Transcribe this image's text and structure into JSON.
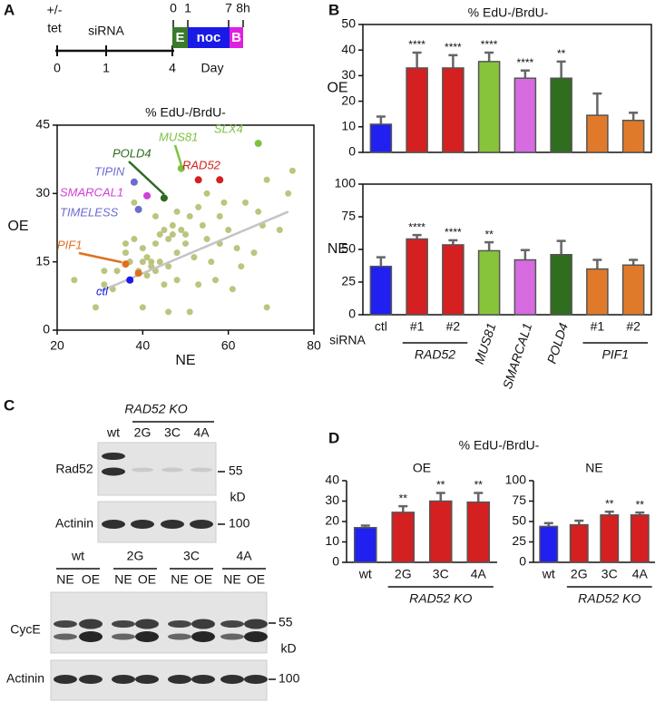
{
  "panels": [
    "A",
    "B",
    "C",
    "D"
  ],
  "timeline": {
    "treatment": [
      "+/-",
      "tet"
    ],
    "sirna": "siRNA",
    "days": [
      "0",
      "1",
      "4"
    ],
    "unit": "Day",
    "hours": [
      "0",
      "1",
      "7",
      "8h"
    ],
    "phases": [
      {
        "label": "E",
        "color": "#3a7a2a"
      },
      {
        "label": "noc",
        "color": "#1a1ae6"
      },
      {
        "label": "B",
        "color": "#e020e0"
      }
    ]
  },
  "chart_data": [
    {
      "type": "scatter",
      "title": "% EdU-/BrdU-",
      "xlabel": "NE",
      "ylabel": "OE",
      "xlim": [
        20,
        80
      ],
      "xticks": [
        20,
        40,
        60,
        80
      ],
      "ylim": [
        0,
        45
      ],
      "yticks": [
        0,
        15,
        30,
        45
      ],
      "background": {
        "color": "#bcc47e",
        "x": [
          24,
          29,
          31,
          31,
          33,
          34,
          36,
          36,
          37,
          38,
          39,
          40,
          40,
          41,
          41,
          42,
          42,
          43,
          43,
          43,
          44,
          44,
          45,
          45,
          46,
          46,
          47,
          47,
          48,
          48,
          49,
          50,
          50,
          51,
          52,
          53,
          53,
          54,
          55,
          56,
          57,
          58,
          59,
          60,
          61,
          62,
          63,
          64,
          66,
          67,
          68,
          69,
          69,
          72,
          74,
          75,
          46,
          40,
          38,
          48,
          55,
          58,
          51
        ],
        "y": [
          11,
          5,
          10,
          13,
          9,
          13,
          19,
          17,
          15,
          20,
          13,
          15,
          18,
          12,
          16,
          14,
          15,
          13,
          19,
          25,
          21,
          15,
          22,
          10,
          20,
          14,
          21,
          23,
          17,
          26,
          22,
          19,
          21,
          25,
          16,
          27,
          10,
          23,
          20,
          15,
          11,
          25,
          28,
          22,
          9,
          18,
          14,
          28,
          17,
          26,
          23,
          5,
          33,
          22,
          30,
          35,
          4,
          5,
          28,
          11,
          30,
          19,
          4
        ]
      },
      "trend": {
        "color": "#c4c4c4",
        "x": [
          30,
          74
        ],
        "y": [
          8.5,
          26
        ]
      },
      "series": [
        {
          "name": "SLX4",
          "color": "#7cc242",
          "x": [
            67
          ],
          "y": [
            41
          ]
        },
        {
          "name": "MUS81",
          "color": "#7cc242",
          "x": [
            49
          ],
          "y": [
            35.5
          ]
        },
        {
          "name": "POLD4",
          "color": "#2d6a1f",
          "x": [
            45
          ],
          "y": [
            29
          ]
        },
        {
          "name": "RAD52",
          "color": "#d42020",
          "x": [
            53,
            58
          ],
          "y": [
            33,
            33
          ]
        },
        {
          "name": "TIPIN",
          "color": "#6b6bd0",
          "x": [
            38
          ],
          "y": [
            32.5
          ]
        },
        {
          "name": "SMARCAL1",
          "color": "#d040d8",
          "x": [
            41
          ],
          "y": [
            29.5
          ]
        },
        {
          "name": "TIMELESS",
          "color": "#6b6bd0",
          "x": [
            39
          ],
          "y": [
            26.5
          ]
        },
        {
          "name": "PIF1",
          "color": "#e07020",
          "x": [
            36,
            39
          ],
          "y": [
            14.5,
            12.5
          ]
        },
        {
          "name": "ctl",
          "color": "#1a1ae6",
          "x": [
            37
          ],
          "y": [
            11
          ]
        }
      ]
    },
    {
      "type": "bar",
      "title": "% EdU-/BrdU-",
      "ylabel": "OE",
      "ylim": [
        0,
        50
      ],
      "yticks": [
        0,
        10,
        20,
        30,
        40,
        50
      ],
      "values": [
        11,
        33,
        33,
        35.5,
        29,
        29,
        14.5,
        12.5
      ],
      "errors": [
        3,
        6,
        5,
        3.5,
        3,
        6.5,
        8.5,
        3
      ],
      "colors": [
        "#2020f0",
        "#d42020",
        "#d42020",
        "#88c43a",
        "#d76be0",
        "#2f6d1f",
        "#e07a2a",
        "#e07a2a"
      ],
      "annotations": [
        {
          "index": 1,
          "text": "****"
        },
        {
          "index": 2,
          "text": "****"
        },
        {
          "index": 3,
          "text": "****"
        },
        {
          "index": 4,
          "text": "****"
        },
        {
          "index": 5,
          "text": "**"
        }
      ]
    },
    {
      "type": "bar",
      "ylabel": "NE",
      "xlabel": "siRNA",
      "ylim": [
        0,
        100
      ],
      "yticks": [
        0,
        25,
        50,
        75,
        100
      ],
      "categories": [
        "ctl",
        "#1",
        "#2",
        "MUS81",
        "SMARCAL1",
        "POLD4",
        "#1",
        "#2"
      ],
      "values": [
        37,
        58,
        53.5,
        49,
        42,
        46,
        35,
        38
      ],
      "errors": [
        7,
        3,
        3.5,
        6.5,
        7.5,
        10.5,
        7,
        4
      ],
      "colors": [
        "#2020f0",
        "#d42020",
        "#d42020",
        "#88c43a",
        "#d76be0",
        "#2f6d1f",
        "#e07a2a",
        "#e07a2a"
      ],
      "annotations": [
        {
          "index": 1,
          "text": "****"
        },
        {
          "index": 2,
          "text": "****"
        },
        {
          "index": 3,
          "text": "**"
        }
      ],
      "groups": [
        {
          "label": "RAD52",
          "from": 1,
          "to": 2
        },
        {
          "label": "PIF1",
          "from": 6,
          "to": 7
        }
      ]
    },
    {
      "type": "bar",
      "title": "% EdU-/BrdU-",
      "subtitle": "OE",
      "ylim": [
        0,
        40
      ],
      "yticks": [
        0,
        10,
        20,
        30,
        40
      ],
      "categories": [
        "wt",
        "2G",
        "3C",
        "4A"
      ],
      "values": [
        17,
        24.5,
        30,
        29.5
      ],
      "errors": [
        1,
        3,
        4,
        4.5
      ],
      "colors": [
        "#2020f0",
        "#d42020",
        "#d42020",
        "#d42020"
      ],
      "annotations": [
        {
          "index": 1,
          "text": "**"
        },
        {
          "index": 2,
          "text": "**"
        },
        {
          "index": 3,
          "text": "**"
        }
      ],
      "groups": [
        {
          "label": "RAD52 KO",
          "from": 1,
          "to": 3
        }
      ]
    },
    {
      "type": "bar",
      "subtitle": "NE",
      "ylim": [
        0,
        100
      ],
      "yticks": [
        0,
        25,
        50,
        75,
        100
      ],
      "categories": [
        "wt",
        "2G",
        "3C",
        "4A"
      ],
      "values": [
        44,
        46,
        58,
        58
      ],
      "errors": [
        4,
        5,
        4,
        3
      ],
      "colors": [
        "#2020f0",
        "#d42020",
        "#d42020",
        "#d42020"
      ],
      "annotations": [
        {
          "index": 2,
          "text": "**"
        },
        {
          "index": 3,
          "text": "**"
        }
      ],
      "groups": [
        {
          "label": "RAD52 KO",
          "from": 1,
          "to": 3
        }
      ]
    }
  ],
  "blots": {
    "top": {
      "group": "RAD52 KO",
      "lanes": [
        "wt",
        "2G",
        "3C",
        "4A"
      ],
      "rows": [
        {
          "name": "Rad52",
          "marker": "55"
        },
        {
          "name": "Actinin",
          "marker": "100"
        }
      ],
      "unit": "kD"
    },
    "bottom": {
      "groups": [
        "wt",
        "2G",
        "3C",
        "4A"
      ],
      "lanes": [
        "NE",
        "OE",
        "NE",
        "OE",
        "NE",
        "OE",
        "NE",
        "OE"
      ],
      "rows": [
        {
          "name": "CycE",
          "marker": "55"
        },
        {
          "name": "Actinin",
          "marker": "100"
        }
      ],
      "unit": "kD"
    }
  }
}
